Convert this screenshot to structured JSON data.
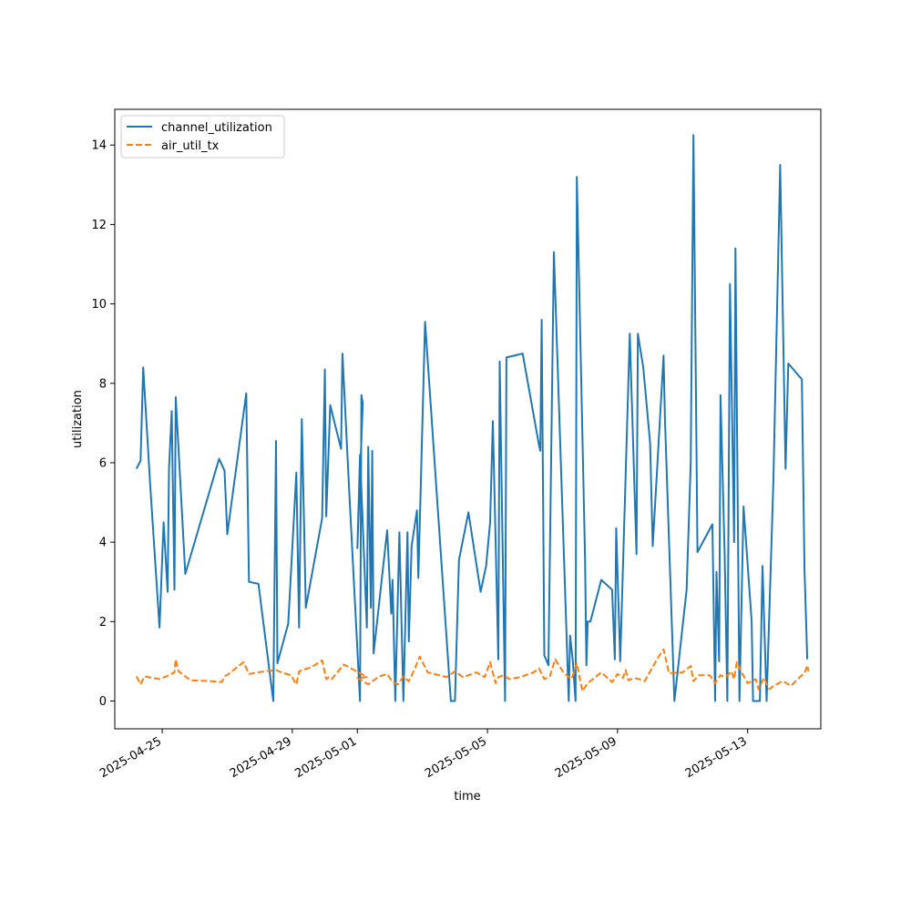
{
  "chart_data": {
    "type": "line",
    "title": "",
    "xlabel": "time",
    "ylabel": "utilization",
    "x_type": "date",
    "xlim": [
      "2025-04-23T13:00",
      "2025-05-15T06:00"
    ],
    "ylim": [
      -0.7,
      14.9
    ],
    "x_ticks": [
      "2025-04-25",
      "2025-04-29",
      "2025-05-01",
      "2025-05-05",
      "2025-05-09",
      "2025-05-13"
    ],
    "y_ticks": [
      0,
      2,
      4,
      6,
      8,
      10,
      12,
      14
    ],
    "grid": false,
    "legend": "upper-left",
    "colors": {
      "channel_utilization": "#1f77b4",
      "air_util_tx": "#ff7f0e"
    },
    "series": [
      {
        "name": "channel_utilization",
        "style": "solid",
        "points": [
          [
            "2025-04-24T05:00",
            5.85
          ],
          [
            "2025-04-24T08:00",
            6.05
          ],
          [
            "2025-04-24T10:00",
            8.4
          ],
          [
            "2025-04-24T15:00",
            5.5
          ],
          [
            "2025-04-24T22:00",
            1.85
          ],
          [
            "2025-04-25T01:00",
            4.5
          ],
          [
            "2025-04-25T04:00",
            2.75
          ],
          [
            "2025-04-25T05:00",
            5.85
          ],
          [
            "2025-04-25T07:00",
            7.3
          ],
          [
            "2025-04-25T09:00",
            2.8
          ],
          [
            "2025-04-25T10:00",
            7.65
          ],
          [
            "2025-04-25T17:00",
            3.2
          ],
          [
            "2025-04-26T18:00",
            6.1
          ],
          [
            "2025-04-26T22:00",
            5.8
          ],
          [
            "2025-04-27T00:00",
            4.2
          ],
          [
            "2025-04-27T14:00",
            7.75
          ],
          [
            "2025-04-27T16:00",
            3.0
          ],
          [
            "2025-04-27T23:00",
            2.95
          ],
          [
            "2025-04-28T10:00",
            0.0
          ],
          [
            "2025-04-28T12:00",
            6.55
          ],
          [
            "2025-04-28T13:00",
            0.95
          ],
          [
            "2025-04-28T21:00",
            1.95
          ],
          [
            "2025-04-29T03:00",
            5.75
          ],
          [
            "2025-04-29T05:00",
            1.85
          ],
          [
            "2025-04-29T07:00",
            7.1
          ],
          [
            "2025-04-29T10:00",
            2.35
          ],
          [
            "2025-04-29T22:00",
            4.6
          ],
          [
            "2025-04-30T00:00",
            8.35
          ],
          [
            "2025-04-30T01:00",
            4.65
          ],
          [
            "2025-04-30T04:00",
            7.45
          ],
          [
            "2025-04-30T12:00",
            6.35
          ],
          [
            "2025-04-30T13:00",
            8.75
          ],
          [
            "2025-04-30T18:00",
            5.3
          ],
          [
            "2025-04-31T02:00",
            0.0
          ],
          [
            "2025-04-31T03:00",
            7.7
          ],
          [
            "2025-04-31T04:00",
            7.5
          ],
          [
            "2025-05-01T00:00",
            3.85
          ],
          [
            "2025-05-01T02:00",
            6.2
          ],
          [
            "2025-05-01T07:00",
            1.85
          ],
          [
            "2025-05-01T08:00",
            6.4
          ],
          [
            "2025-05-01T10:00",
            2.35
          ],
          [
            "2025-05-01T11:00",
            6.3
          ],
          [
            "2025-05-01T12:00",
            1.2
          ],
          [
            "2025-05-01T22:00",
            4.3
          ],
          [
            "2025-05-02T01:00",
            2.2
          ],
          [
            "2025-05-02T02:00",
            3.05
          ],
          [
            "2025-05-02T04:00",
            0.0
          ],
          [
            "2025-05-02T07:00",
            4.25
          ],
          [
            "2025-05-02T10:00",
            0.0
          ],
          [
            "2025-05-02T13:00",
            4.25
          ],
          [
            "2025-05-02T14:00",
            1.5
          ],
          [
            "2025-05-02T16:00",
            3.9
          ],
          [
            "2025-05-02T20:00",
            4.8
          ],
          [
            "2025-05-02T21:00",
            3.1
          ],
          [
            "2025-05-03T02:00",
            9.55
          ],
          [
            "2025-05-03T21:00",
            0.0
          ],
          [
            "2025-05-04T00:00",
            0.0
          ],
          [
            "2025-05-04T03:00",
            3.55
          ],
          [
            "2025-05-04T10:00",
            4.75
          ],
          [
            "2025-05-04T19:00",
            2.75
          ],
          [
            "2025-05-04T23:00",
            3.4
          ],
          [
            "2025-05-05T02:00",
            4.5
          ],
          [
            "2025-05-05T04:00",
            7.05
          ],
          [
            "2025-05-05T08:00",
            1.05
          ],
          [
            "2025-05-05T09:00",
            8.55
          ],
          [
            "2025-05-05T13:00",
            0.0
          ],
          [
            "2025-05-05T14:00",
            8.65
          ],
          [
            "2025-05-06T02:00",
            8.75
          ],
          [
            "2025-05-06T14:00",
            6.45
          ],
          [
            "2025-05-06T15:00",
            6.3
          ],
          [
            "2025-05-06T16:00",
            9.6
          ],
          [
            "2025-05-06T18:00",
            1.15
          ],
          [
            "2025-05-06T21:00",
            0.9
          ],
          [
            "2025-05-07T01:00",
            11.3
          ],
          [
            "2025-05-07T12:00",
            0.0
          ],
          [
            "2025-05-07T13:00",
            1.65
          ],
          [
            "2025-05-07T15:00",
            1.0
          ],
          [
            "2025-05-07T17:00",
            0.0
          ],
          [
            "2025-05-07T18:00",
            13.2
          ],
          [
            "2025-05-08T00:00",
            3.6
          ],
          [
            "2025-05-08T01:00",
            0.9
          ],
          [
            "2025-05-08T02:00",
            2.0
          ],
          [
            "2025-05-08T04:00",
            2.0
          ],
          [
            "2025-05-08T12:00",
            3.05
          ],
          [
            "2025-05-08T20:00",
            2.8
          ],
          [
            "2025-05-08T22:00",
            1.05
          ],
          [
            "2025-05-08T23:00",
            4.35
          ],
          [
            "2025-05-09T02:00",
            1.0
          ],
          [
            "2025-05-09T09:00",
            9.25
          ],
          [
            "2025-05-09T14:00",
            3.7
          ],
          [
            "2025-05-09T15:00",
            9.25
          ],
          [
            "2025-05-09T19:00",
            8.4
          ],
          [
            "2025-05-10T00:00",
            6.5
          ],
          [
            "2025-05-10T02:00",
            3.9
          ],
          [
            "2025-05-10T10:00",
            8.7
          ],
          [
            "2025-05-10T11:00",
            7.1
          ],
          [
            "2025-05-10T18:00",
            0.0
          ],
          [
            "2025-05-11T03:00",
            2.8
          ],
          [
            "2025-05-11T06:00",
            6.0
          ],
          [
            "2025-05-11T08:00",
            14.25
          ],
          [
            "2025-05-11T11:00",
            3.75
          ],
          [
            "2025-05-11T22:00",
            4.45
          ],
          [
            "2025-05-12T00:00",
            0.0
          ],
          [
            "2025-05-12T01:00",
            3.25
          ],
          [
            "2025-05-12T03:00",
            1.0
          ],
          [
            "2025-05-12T04:00",
            7.7
          ],
          [
            "2025-05-12T07:00",
            3.75
          ],
          [
            "2025-05-12T09:00",
            0.0
          ],
          [
            "2025-05-12T11:00",
            10.5
          ],
          [
            "2025-05-12T14:00",
            4.0
          ],
          [
            "2025-05-12T15:00",
            11.4
          ],
          [
            "2025-05-12T18:00",
            0.0
          ],
          [
            "2025-05-12T21:00",
            4.9
          ],
          [
            "2025-05-13T03:00",
            2.0
          ],
          [
            "2025-05-13T04:00",
            0.0
          ],
          [
            "2025-05-13T09:00",
            0.0
          ],
          [
            "2025-05-13T11:00",
            3.4
          ],
          [
            "2025-05-13T14:00",
            0.0
          ],
          [
            "2025-05-13T19:00",
            5.5
          ],
          [
            "2025-05-14T00:00",
            13.5
          ],
          [
            "2025-05-14T04:00",
            5.85
          ],
          [
            "2025-05-14T06:00",
            8.5
          ],
          [
            "2025-05-14T16:00",
            8.1
          ],
          [
            "2025-05-14T18:00",
            3.3
          ],
          [
            "2025-05-14T19:00",
            2.2
          ],
          [
            "2025-05-14T20:00",
            1.05
          ]
        ]
      },
      {
        "name": "air_util_tx",
        "style": "dashed",
        "points": [
          [
            "2025-04-24T05:00",
            0.62
          ],
          [
            "2025-04-24T08:00",
            0.42
          ],
          [
            "2025-04-24T11:00",
            0.62
          ],
          [
            "2025-04-24T22:00",
            0.55
          ],
          [
            "2025-04-25T05:00",
            0.65
          ],
          [
            "2025-04-25T09:00",
            0.72
          ],
          [
            "2025-04-25T10:00",
            1.05
          ],
          [
            "2025-04-25T12:00",
            0.75
          ],
          [
            "2025-04-25T21:00",
            0.52
          ],
          [
            "2025-04-26T12:00",
            0.5
          ],
          [
            "2025-04-26T20:00",
            0.48
          ],
          [
            "2025-04-26T22:00",
            0.62
          ],
          [
            "2025-04-27T01:00",
            0.68
          ],
          [
            "2025-04-27T12:00",
            0.98
          ],
          [
            "2025-04-27T16:00",
            0.68
          ],
          [
            "2025-04-28T04:00",
            0.75
          ],
          [
            "2025-04-28T12:00",
            0.78
          ],
          [
            "2025-04-28T16:00",
            0.72
          ],
          [
            "2025-04-28T23:00",
            0.65
          ],
          [
            "2025-04-29T03:00",
            0.42
          ],
          [
            "2025-04-29T05:00",
            0.75
          ],
          [
            "2025-04-29T14:00",
            0.85
          ],
          [
            "2025-04-29T22:00",
            1.02
          ],
          [
            "2025-04-30T01:00",
            0.55
          ],
          [
            "2025-04-30T03:00",
            0.6
          ],
          [
            "2025-04-30T05:00",
            0.55
          ],
          [
            "2025-04-30T10:00",
            0.75
          ],
          [
            "2025-04-30T14:00",
            0.92
          ],
          [
            "2025-04-31T03:00",
            0.68
          ],
          [
            "2025-04-31T07:00",
            0.6
          ],
          [
            "2025-05-01T00:00",
            0.58
          ],
          [
            "2025-05-01T08:00",
            0.42
          ],
          [
            "2025-05-01T16:00",
            0.62
          ],
          [
            "2025-05-01T22:00",
            0.68
          ],
          [
            "2025-05-02T02:00",
            0.48
          ],
          [
            "2025-05-02T06:00",
            0.42
          ],
          [
            "2025-05-02T10:00",
            0.62
          ],
          [
            "2025-05-02T14:00",
            0.5
          ],
          [
            "2025-05-02T18:00",
            0.78
          ],
          [
            "2025-05-02T22:00",
            1.12
          ],
          [
            "2025-05-03T04:00",
            0.72
          ],
          [
            "2025-05-03T18:00",
            0.6
          ],
          [
            "2025-05-04T00:00",
            0.75
          ],
          [
            "2025-05-04T06:00",
            0.6
          ],
          [
            "2025-05-04T16:00",
            0.72
          ],
          [
            "2025-05-04T22:00",
            0.6
          ],
          [
            "2025-05-05T02:00",
            0.98
          ],
          [
            "2025-05-05T06:00",
            0.45
          ],
          [
            "2025-05-05T08:00",
            0.6
          ],
          [
            "2025-05-05T12:00",
            0.65
          ],
          [
            "2025-05-05T16:00",
            0.55
          ],
          [
            "2025-05-06T00:00",
            0.6
          ],
          [
            "2025-05-06T10:00",
            0.72
          ],
          [
            "2025-05-06T14:00",
            0.82
          ],
          [
            "2025-05-06T18:00",
            0.55
          ],
          [
            "2025-05-06T22:00",
            0.62
          ],
          [
            "2025-05-07T02:00",
            1.05
          ],
          [
            "2025-05-07T08:00",
            0.72
          ],
          [
            "2025-05-07T14:00",
            0.55
          ],
          [
            "2025-05-07T18:00",
            0.95
          ],
          [
            "2025-05-07T22:00",
            0.25
          ],
          [
            "2025-05-08T02:00",
            0.45
          ],
          [
            "2025-05-08T12:00",
            0.72
          ],
          [
            "2025-05-08T20:00",
            0.48
          ],
          [
            "2025-05-09T00:00",
            0.68
          ],
          [
            "2025-05-09T04:00",
            0.58
          ],
          [
            "2025-05-09T06:00",
            0.78
          ],
          [
            "2025-05-09T08:00",
            0.52
          ],
          [
            "2025-05-09T12:00",
            0.58
          ],
          [
            "2025-05-09T16:00",
            0.55
          ],
          [
            "2025-05-09T20:00",
            0.5
          ],
          [
            "2025-05-10T06:00",
            1.1
          ],
          [
            "2025-05-10T10:00",
            1.3
          ],
          [
            "2025-05-10T14:00",
            0.7
          ],
          [
            "2025-05-11T00:00",
            0.72
          ],
          [
            "2025-05-11T06:00",
            0.88
          ],
          [
            "2025-05-11T08:00",
            0.5
          ],
          [
            "2025-05-11T12:00",
            0.65
          ],
          [
            "2025-05-11T20:00",
            0.65
          ],
          [
            "2025-05-12T00:00",
            0.45
          ],
          [
            "2025-05-12T04:00",
            0.65
          ],
          [
            "2025-05-12T08:00",
            0.6
          ],
          [
            "2025-05-12T12:00",
            0.75
          ],
          [
            "2025-05-12T14:00",
            0.55
          ],
          [
            "2025-05-12T16:00",
            0.98
          ],
          [
            "2025-05-12T20:00",
            0.7
          ],
          [
            "2025-05-13T00:00",
            0.45
          ],
          [
            "2025-05-13T06:00",
            0.55
          ],
          [
            "2025-05-13T08:00",
            0.3
          ],
          [
            "2025-05-13T12:00",
            0.58
          ],
          [
            "2025-05-13T16:00",
            0.3
          ],
          [
            "2025-05-13T20:00",
            0.4
          ],
          [
            "2025-05-14T02:00",
            0.5
          ],
          [
            "2025-05-14T08:00",
            0.38
          ],
          [
            "2025-05-14T12:00",
            0.52
          ],
          [
            "2025-05-14T16:00",
            0.65
          ],
          [
            "2025-05-14T18:00",
            0.7
          ],
          [
            "2025-05-14T20:00",
            0.9
          ],
          [
            "2025-05-14T21:00",
            0.75
          ]
        ]
      }
    ]
  }
}
